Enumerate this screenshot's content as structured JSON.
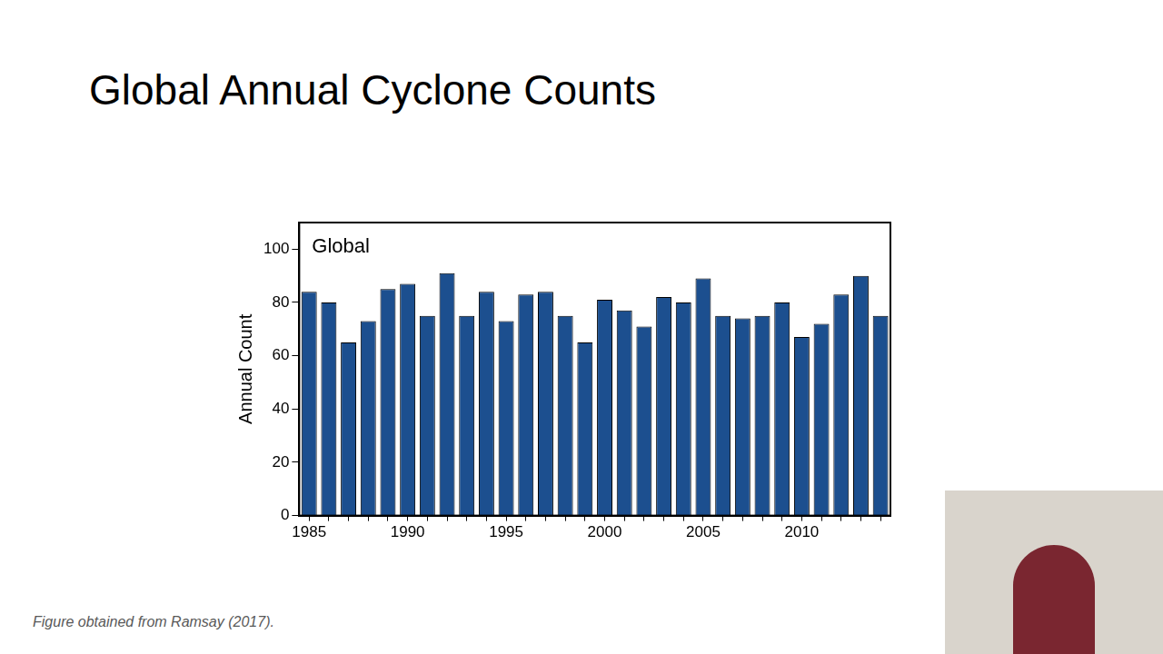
{
  "chart_data": {
    "type": "bar",
    "title": "Global Annual Cyclone Counts",
    "annotation": "Global",
    "y_label": "Annual Count",
    "caption": "Figure obtained from Ramsay (2017).",
    "categories": [
      "1985",
      null,
      null,
      null,
      null,
      "1990",
      null,
      null,
      null,
      null,
      "1995",
      null,
      null,
      null,
      null,
      "2000",
      null,
      null,
      null,
      null,
      "2005",
      null,
      null,
      null,
      null,
      "2010",
      null,
      null,
      null,
      null
    ],
    "values": [
      84,
      80,
      65,
      73,
      85,
      87,
      75,
      91,
      75,
      84,
      73,
      83,
      84,
      75,
      65,
      81,
      77,
      71,
      82,
      80,
      89,
      75,
      74,
      75,
      80,
      67,
      72,
      83,
      90,
      75
    ],
    "color": "#1c4f8f",
    "ylim": [
      0,
      110
    ],
    "yticks": [
      0,
      20,
      40,
      60,
      80,
      100
    ],
    "grid": false
  }
}
